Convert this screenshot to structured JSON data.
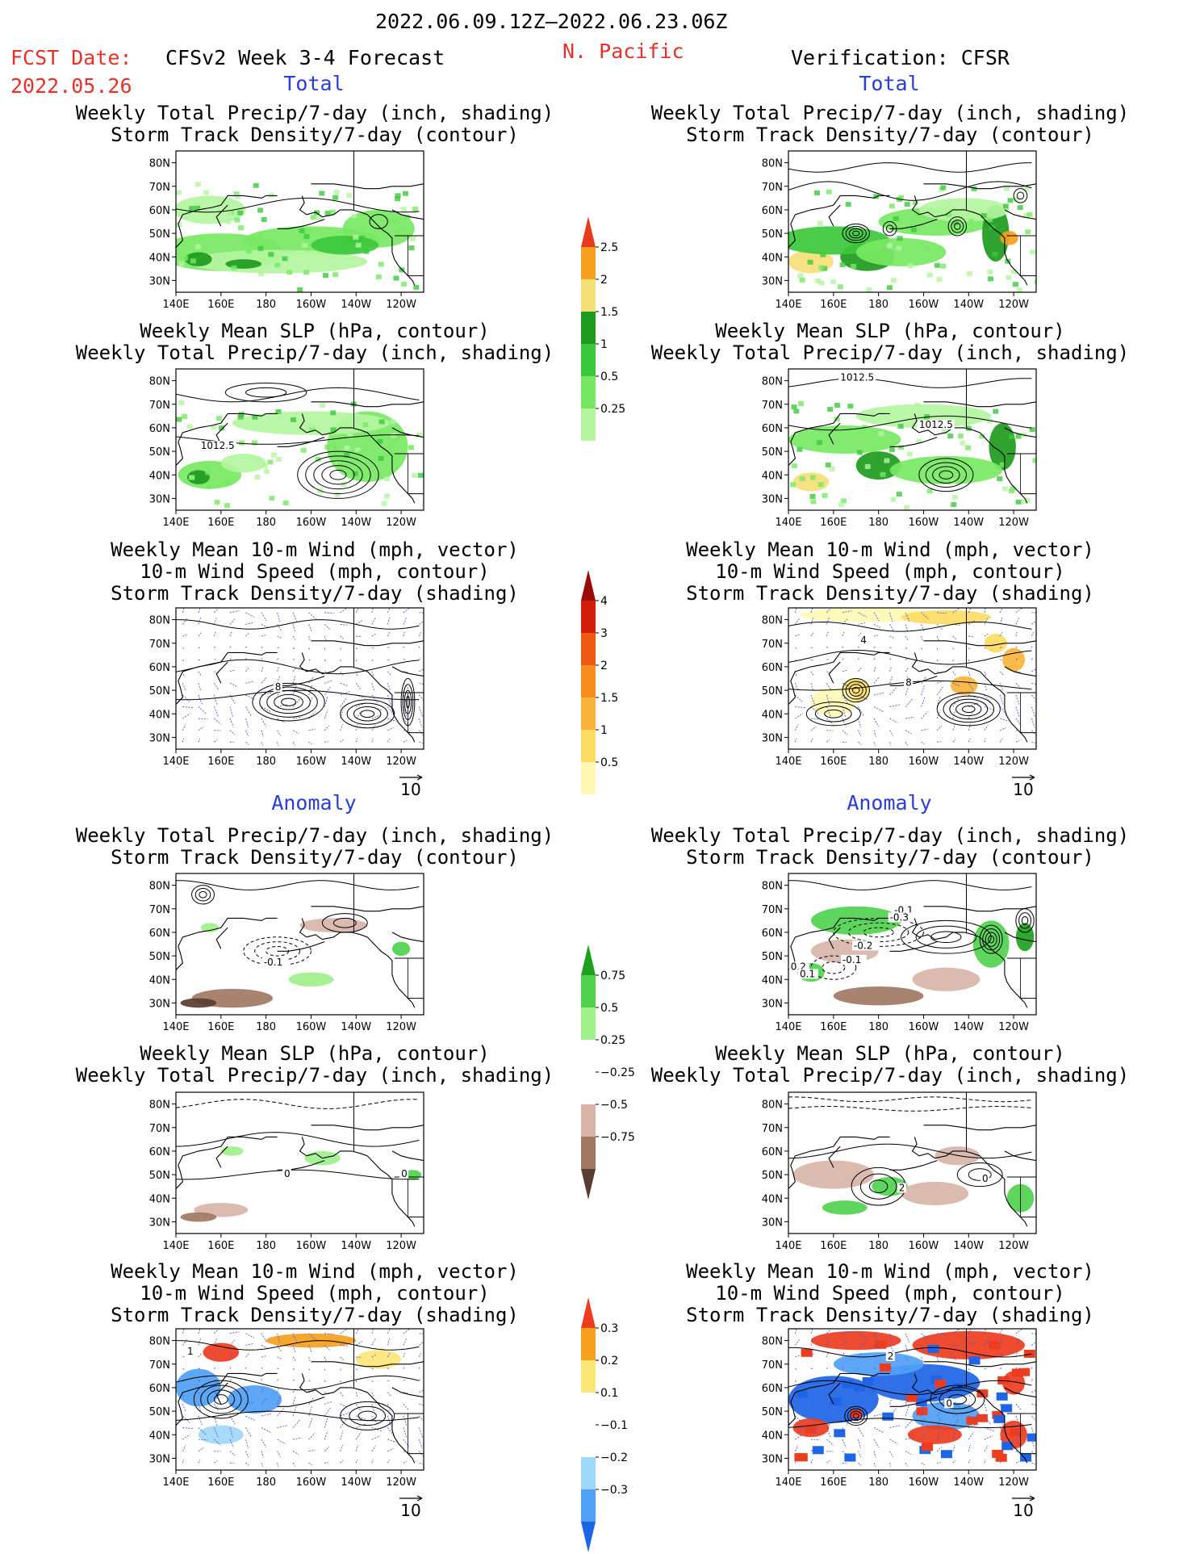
{
  "header": {
    "period": "2022.06.09.12Z–2022.06.23.06Z",
    "fcst_label": "FCST Date:",
    "fcst_date": "2022.05.26",
    "model": "CFSv2 Week 3-4 Forecast",
    "region": "N. Pacific",
    "verification": "Verification: CFSR"
  },
  "sections": {
    "total": "Total",
    "anomaly": "Anomaly"
  },
  "colors": {
    "header_red": "#e8302a",
    "section_blue": "#2a3cd8",
    "green_shades": [
      "#b4f5a0",
      "#78e864",
      "#3cc83c",
      "#1e9a1e",
      "#f5e078",
      "#f5a01e",
      "#e63c1e"
    ],
    "wind_shades": [
      "#fff8b4",
      "#fcdc64",
      "#f8b43c",
      "#f58c1e",
      "#ee5a14",
      "#d21e0a",
      "#9a0a0a"
    ],
    "anom_precip_shades": [
      "#5a3c32",
      "#a07864",
      "#d8b4a8",
      "#ffffff",
      "#a0f08c",
      "#50d250",
      "#1ea01e"
    ],
    "anom_track_shades": [
      "#1e64e6",
      "#50a0f5",
      "#a0d8f8",
      "#ffffff",
      "#fce678",
      "#f5a01e",
      "#ee3c1e"
    ],
    "contour": "#000000",
    "vector": "#4a5ad8"
  },
  "chart_data": [
    {
      "type": "heatmap",
      "panel": "forecast-total-precip-storm",
      "title_lines": [
        "Weekly Total Precip/7-day (inch, shading)",
        "Storm Track Density/7-day (contour)"
      ],
      "lat_ticks": [
        "80N",
        "70N",
        "60N",
        "50N",
        "40N",
        "30N"
      ],
      "lon_ticks": [
        "140E",
        "160E",
        "180",
        "160W",
        "140W",
        "120W"
      ],
      "xlim": [
        140,
        250
      ],
      "ylim": [
        25,
        85
      ]
    },
    {
      "type": "heatmap",
      "panel": "verification-total-precip-storm",
      "title_lines": [
        "Weekly Total Precip/7-day (inch, shading)",
        "Storm Track Density/7-day (contour)"
      ],
      "lat_ticks": [
        "80N",
        "70N",
        "60N",
        "50N",
        "40N",
        "30N"
      ],
      "lon_ticks": [
        "140E",
        "160E",
        "180",
        "160W",
        "140W",
        "120W"
      ],
      "xlim": [
        140,
        250
      ],
      "ylim": [
        25,
        85
      ]
    },
    {
      "type": "heatmap",
      "panel": "forecast-total-slp-precip",
      "title_lines": [
        "Weekly Mean SLP (hPa, contour)",
        "Weekly Total Precip/7-day (inch, shading)"
      ],
      "lat_ticks": [
        "80N",
        "70N",
        "60N",
        "50N",
        "40N",
        "30N"
      ],
      "lon_ticks": [
        "140E",
        "160E",
        "180",
        "160W",
        "140W",
        "120W"
      ],
      "contour_labels": [
        "1012.5"
      ],
      "xlim": [
        140,
        250
      ],
      "ylim": [
        25,
        85
      ]
    },
    {
      "type": "heatmap",
      "panel": "verification-total-slp-precip",
      "title_lines": [
        "Weekly Mean SLP (hPa, contour)",
        "Weekly Total Precip/7-day (inch, shading)"
      ],
      "lat_ticks": [
        "80N",
        "70N",
        "60N",
        "50N",
        "40N",
        "30N"
      ],
      "lon_ticks": [
        "140E",
        "160E",
        "180",
        "160W",
        "140W",
        "120W"
      ],
      "contour_labels": [
        "1012.5",
        "1012.5"
      ],
      "xlim": [
        140,
        250
      ],
      "ylim": [
        25,
        85
      ]
    },
    {
      "type": "heatmap",
      "panel": "forecast-total-wind",
      "title_lines": [
        "Weekly Mean 10-m Wind (mph, vector)",
        "10-m Wind Speed (mph, contour)",
        "Storm Track Density/7-day (shading)"
      ],
      "lat_ticks": [
        "80N",
        "70N",
        "60N",
        "50N",
        "40N",
        "30N"
      ],
      "lon_ticks": [
        "140E",
        "160E",
        "180",
        "160W",
        "140W",
        "120W"
      ],
      "contour_labels": [
        "8"
      ],
      "vector_ref": "10",
      "xlim": [
        140,
        250
      ],
      "ylim": [
        25,
        85
      ]
    },
    {
      "type": "heatmap",
      "panel": "verification-total-wind",
      "title_lines": [
        "Weekly Mean 10-m Wind (mph, vector)",
        "10-m Wind Speed (mph, contour)",
        "Storm Track Density/7-day (shading)"
      ],
      "lat_ticks": [
        "80N",
        "70N",
        "60N",
        "50N",
        "40N",
        "30N"
      ],
      "lon_ticks": [
        "140E",
        "160E",
        "180",
        "160W",
        "140W",
        "120W"
      ],
      "contour_labels": [
        "4",
        "8"
      ],
      "vector_ref": "10",
      "xlim": [
        140,
        250
      ],
      "ylim": [
        25,
        85
      ]
    },
    {
      "type": "heatmap",
      "panel": "forecast-anomaly-precip-storm",
      "title_lines": [
        "Weekly Total Precip/7-day (inch, shading)",
        "Storm Track Density/7-day (contour)"
      ],
      "lat_ticks": [
        "80N",
        "70N",
        "60N",
        "50N",
        "40N",
        "30N"
      ],
      "lon_ticks": [
        "140E",
        "160E",
        "180",
        "160W",
        "140W",
        "120W"
      ],
      "contour_labels": [
        "-0.1"
      ],
      "xlim": [
        140,
        250
      ],
      "ylim": [
        25,
        85
      ]
    },
    {
      "type": "heatmap",
      "panel": "verification-anomaly-precip-storm",
      "title_lines": [
        "Weekly Total Precip/7-day (inch, shading)",
        "Storm Track Density/7-day (contour)"
      ],
      "lat_ticks": [
        "80N",
        "70N",
        "60N",
        "50N",
        "40N",
        "30N"
      ],
      "lon_ticks": [
        "140E",
        "160E",
        "180",
        "160W",
        "140W",
        "120W"
      ],
      "contour_labels": [
        "-0.1",
        "-0.3",
        "-0.2",
        "-0.1",
        "0.2",
        "0.1"
      ],
      "xlim": [
        140,
        250
      ],
      "ylim": [
        25,
        85
      ]
    },
    {
      "type": "heatmap",
      "panel": "forecast-anomaly-slp-precip",
      "title_lines": [
        "Weekly Mean SLP (hPa, contour)",
        "Weekly Total Precip/7-day (inch, shading)"
      ],
      "lat_ticks": [
        "80N",
        "70N",
        "60N",
        "50N",
        "40N",
        "30N"
      ],
      "lon_ticks": [
        "140E",
        "160E",
        "180",
        "160W",
        "140W",
        "120W"
      ],
      "contour_labels": [
        "0",
        "0"
      ],
      "xlim": [
        140,
        250
      ],
      "ylim": [
        25,
        85
      ]
    },
    {
      "type": "heatmap",
      "panel": "verification-anomaly-slp-precip",
      "title_lines": [
        "Weekly Mean SLP (hPa, contour)",
        "Weekly Total Precip/7-day (inch, shading)"
      ],
      "lat_ticks": [
        "80N",
        "70N",
        "60N",
        "50N",
        "40N",
        "30N"
      ],
      "lon_ticks": [
        "140E",
        "160E",
        "180",
        "160W",
        "140W",
        "120W"
      ],
      "contour_labels": [
        "2",
        "0"
      ],
      "xlim": [
        140,
        250
      ],
      "ylim": [
        25,
        85
      ]
    },
    {
      "type": "heatmap",
      "panel": "forecast-anomaly-wind",
      "title_lines": [
        "Weekly Mean 10-m Wind (mph, vector)",
        "10-m Wind Speed (mph, contour)",
        "Storm Track Density/7-day (shading)"
      ],
      "lat_ticks": [
        "80N",
        "70N",
        "60N",
        "50N",
        "40N",
        "30N"
      ],
      "lon_ticks": [
        "140E",
        "160E",
        "180",
        "160W",
        "140W",
        "120W"
      ],
      "contour_labels": [
        "1"
      ],
      "vector_ref": "10",
      "xlim": [
        140,
        250
      ],
      "ylim": [
        25,
        85
      ]
    },
    {
      "type": "heatmap",
      "panel": "verification-anomaly-wind",
      "title_lines": [
        "Weekly Mean 10-m Wind (mph, vector)",
        "10-m Wind Speed (mph, contour)",
        "Storm Track Density/7-day (shading)"
      ],
      "lat_ticks": [
        "80N",
        "70N",
        "60N",
        "50N",
        "40N",
        "30N"
      ],
      "lon_ticks": [
        "140E",
        "160E",
        "180",
        "160W",
        "140W",
        "120W"
      ],
      "contour_labels": [
        "2",
        "0"
      ],
      "vector_ref": "10",
      "xlim": [
        140,
        250
      ],
      "ylim": [
        25,
        85
      ]
    }
  ],
  "colorbars": [
    {
      "name": "total-precip",
      "labels": [
        "2.5",
        "2",
        "1.5",
        "1",
        "0.5",
        "0.25"
      ]
    },
    {
      "name": "total-storm-track",
      "labels": [
        "4",
        "3",
        "2",
        "1.5",
        "1",
        "0.5"
      ]
    },
    {
      "name": "anomaly-precip",
      "labels": [
        "0.75",
        "0.5",
        "0.25",
        "−0.25",
        "−0.5",
        "−0.75"
      ]
    },
    {
      "name": "anomaly-storm-track",
      "labels": [
        "0.3",
        "0.2",
        "0.1",
        "−0.1",
        "−0.2",
        "−0.3"
      ]
    }
  ]
}
